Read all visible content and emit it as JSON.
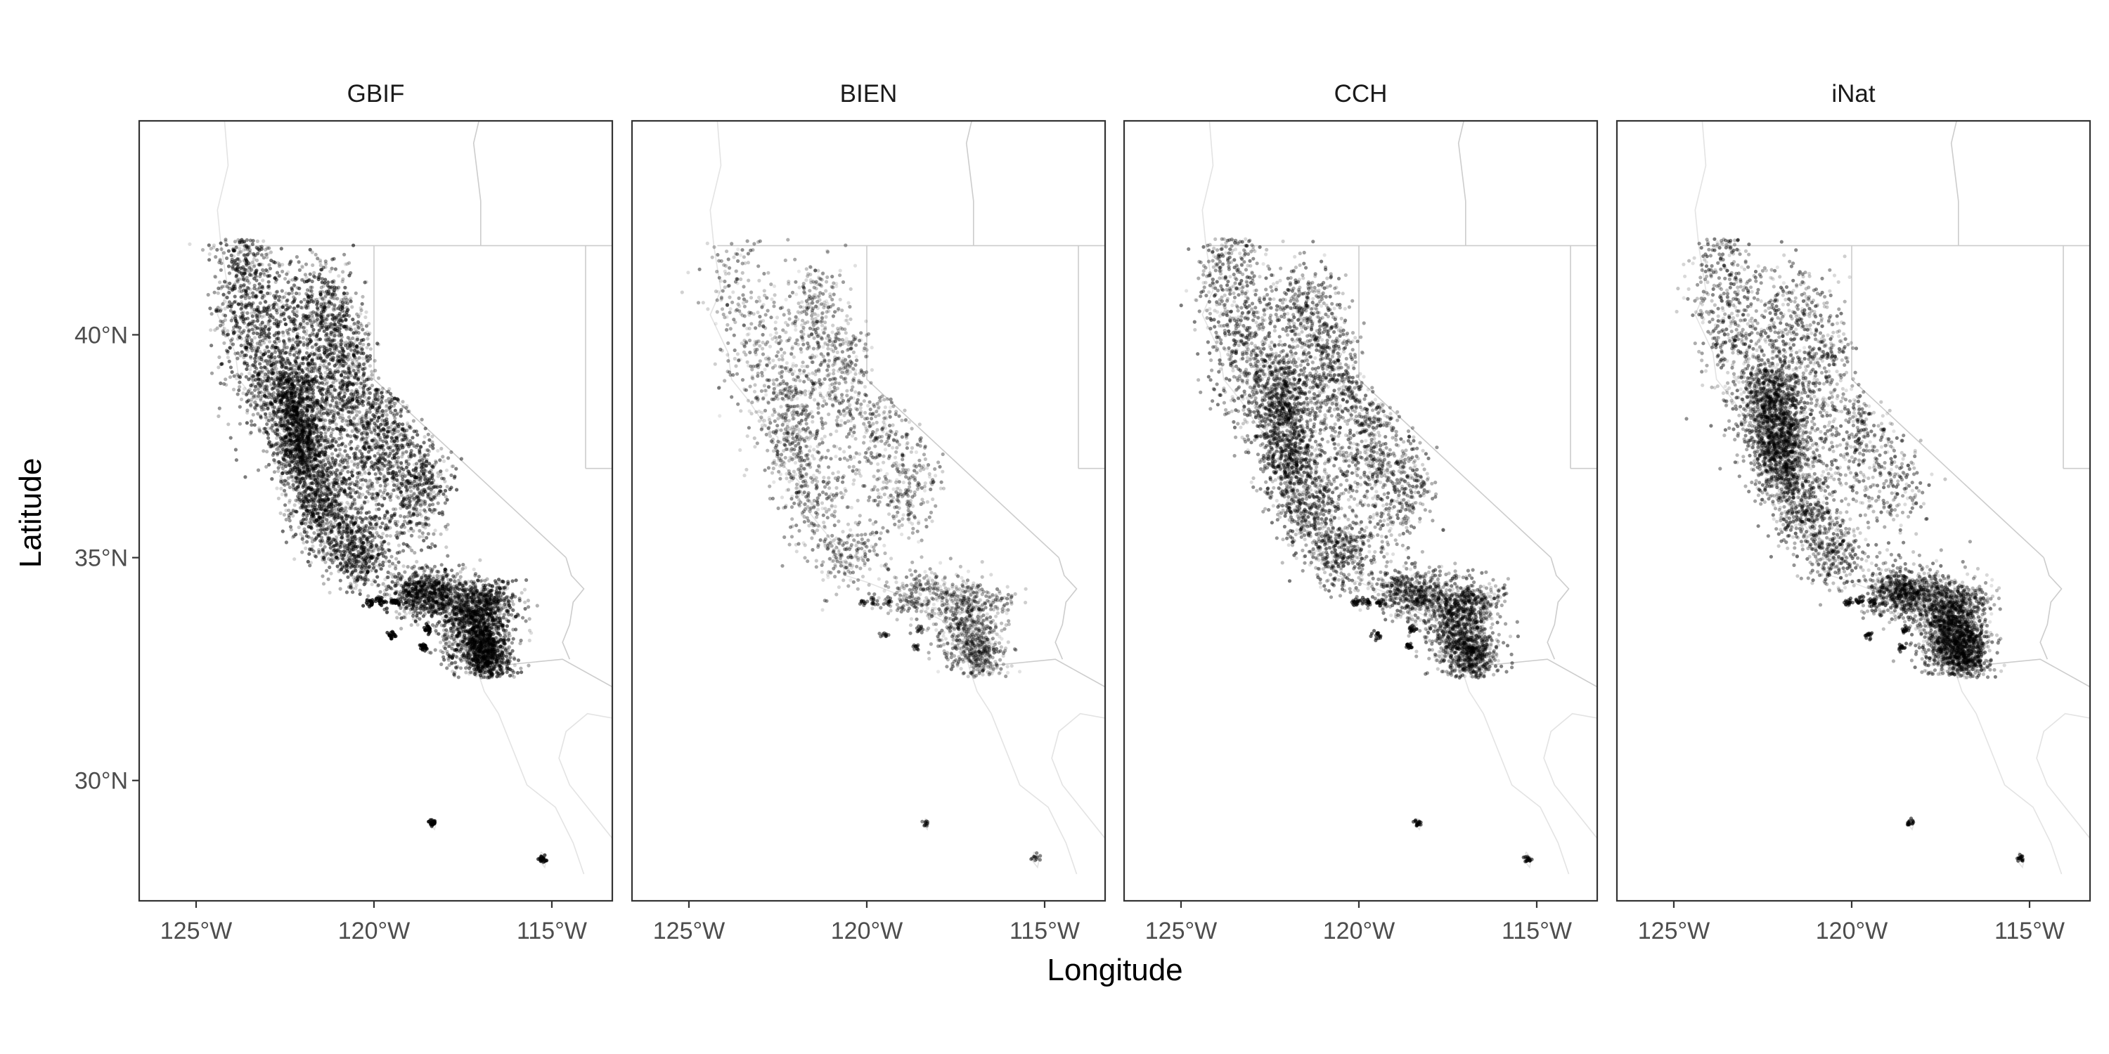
{
  "figure": {
    "xlabel": "Longitude",
    "ylabel": "Latitude",
    "x_ticks": [
      {
        "value": -125,
        "label": "125°W"
      },
      {
        "value": -120,
        "label": "120°W"
      },
      {
        "value": -115,
        "label": "115°W"
      }
    ],
    "y_ticks": [
      {
        "value": 40,
        "label": "40°N"
      },
      {
        "value": 35,
        "label": "35°N"
      },
      {
        "value": 30,
        "label": "30°N"
      }
    ],
    "xlim": [
      -126.6,
      -113.3
    ],
    "ylim": [
      27.3,
      44.8
    ],
    "point_color": "#000000",
    "panels": [
      {
        "name": "GBIF",
        "density": 1.0
      },
      {
        "name": "BIEN",
        "density": 0.42
      },
      {
        "name": "CCH",
        "density": 0.72
      },
      {
        "name": "iNat",
        "density": 0.68
      }
    ]
  }
}
